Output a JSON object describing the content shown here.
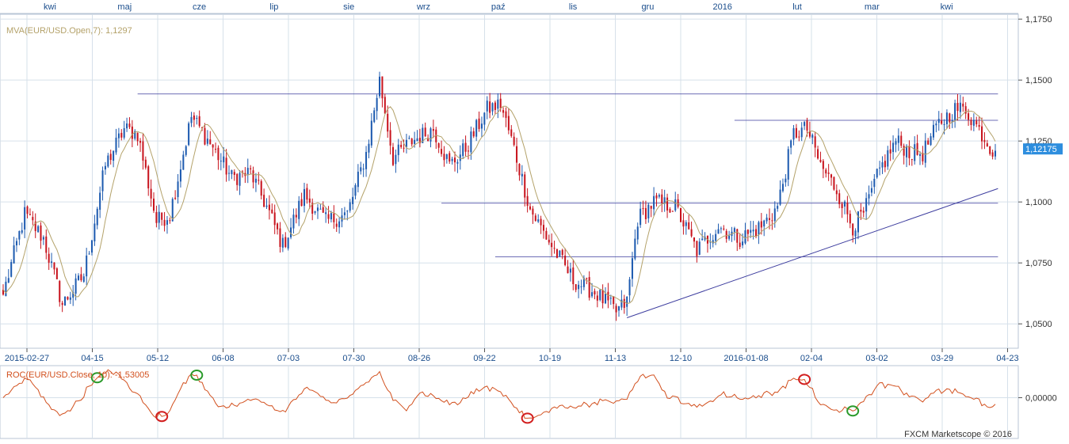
{
  "colors": {
    "up": "#1e5bb0",
    "down": "#c8141e",
    "ma": "#b4a26a",
    "roc": "#d2501e",
    "grid": "#d6e0ea",
    "frame": "#b8c6d6",
    "trendline": "#3c3c9e",
    "markerRed": "#d21e1e",
    "markerGreen": "#2a9a2a",
    "priceTag": "#2e8ede",
    "monthArrow": "#e08a00"
  },
  "chart_data": [
    {
      "type": "candlestick",
      "title": "MVA(EUR/USD.Open,7): 1,1297",
      "ma_label": "MVA(EUR/USD.Open,7): 1,1297",
      "ylim": [
        1.04,
        1.177
      ],
      "y_ticks": [
        "1,1750",
        "1,1500",
        "1,1250",
        "1,1000",
        "1,0750",
        "1,0500"
      ],
      "y_tick_values": [
        1.175,
        1.15,
        1.125,
        1.1,
        1.075,
        1.05
      ],
      "last_price": "1,12175",
      "x_labels": [
        "2015-02-27",
        "04-15",
        "05-12",
        "06-08",
        "07-03",
        "07-30",
        "08-26",
        "09-22",
        "10-19",
        "11-13",
        "12-10",
        "2016-01-08",
        "02-04",
        "03-02",
        "03-29",
        "04-23"
      ],
      "month_labels": [
        "kwi",
        "maj",
        "cze",
        "lip",
        "sie",
        "wrz",
        "paź",
        "lis",
        "gru",
        "2016",
        "lut",
        "mar",
        "kwi"
      ],
      "key_closes": [
        [
          0,
          1.062
        ],
        [
          8,
          1.095
        ],
        [
          15,
          1.085
        ],
        [
          22,
          1.058
        ],
        [
          30,
          1.07
        ],
        [
          38,
          1.115
        ],
        [
          45,
          1.13
        ],
        [
          50,
          1.128
        ],
        [
          57,
          1.092
        ],
        [
          62,
          1.095
        ],
        [
          70,
          1.135
        ],
        [
          77,
          1.124
        ],
        [
          85,
          1.11
        ],
        [
          92,
          1.112
        ],
        [
          98,
          1.098
        ],
        [
          104,
          1.082
        ],
        [
          112,
          1.103
        ],
        [
          120,
          1.092
        ],
        [
          128,
          1.095
        ],
        [
          135,
          1.12
        ],
        [
          140,
          1.15
        ],
        [
          145,
          1.118
        ],
        [
          152,
          1.125
        ],
        [
          160,
          1.13
        ],
        [
          166,
          1.115
        ],
        [
          172,
          1.122
        ],
        [
          180,
          1.138
        ],
        [
          185,
          1.14
        ],
        [
          190,
          1.122
        ],
        [
          196,
          1.097
        ],
        [
          204,
          1.082
        ],
        [
          212,
          1.068
        ],
        [
          220,
          1.063
        ],
        [
          228,
          1.055
        ],
        [
          232,
          1.059
        ],
        [
          236,
          1.093
        ],
        [
          242,
          1.1
        ],
        [
          250,
          1.098
        ],
        [
          258,
          1.08
        ],
        [
          266,
          1.09
        ],
        [
          274,
          1.085
        ],
        [
          282,
          1.09
        ],
        [
          288,
          1.098
        ],
        [
          294,
          1.128
        ],
        [
          299,
          1.13
        ],
        [
          304,
          1.115
        ],
        [
          310,
          1.105
        ],
        [
          316,
          1.09
        ],
        [
          320,
          1.095
        ],
        [
          326,
          1.113
        ],
        [
          332,
          1.125
        ],
        [
          338,
          1.12
        ],
        [
          342,
          1.12
        ],
        [
          348,
          1.132
        ],
        [
          354,
          1.138
        ],
        [
          358,
          1.138
        ],
        [
          364,
          1.128
        ],
        [
          368,
          1.121
        ]
      ],
      "horizontal_lines": [
        {
          "from": 50,
          "to": 205,
          "price": 1.1443
        },
        {
          "from": 205,
          "to": 370,
          "price": 1.1443
        },
        {
          "from": 272,
          "to": 370,
          "price": 1.1335
        },
        {
          "from": 163,
          "to": 370,
          "price": 1.0995
        },
        {
          "from": 183,
          "to": 370,
          "price": 1.0775
        }
      ],
      "trendline": {
        "from": [
          232,
          1.0525
        ],
        "to": [
          370,
          1.1055
        ]
      }
    },
    {
      "type": "line",
      "title": "ROC(EUR/USD.Close, 10): -1,53005",
      "roc_label": "ROC(EUR/USD.Close, 10): -1,53005",
      "y_ticks": [
        "0,00000"
      ],
      "y_tick_values": [
        0
      ],
      "ylim": [
        -7,
        5.5
      ],
      "markers": [
        {
          "index": 35,
          "color": "green"
        },
        {
          "index": 59,
          "color": "red"
        },
        {
          "index": 72,
          "color": "green"
        },
        {
          "index": 195,
          "color": "red"
        },
        {
          "index": 298,
          "color": "red"
        },
        {
          "index": 316,
          "color": "green"
        }
      ]
    }
  ],
  "footer": {
    "credit": "FXCM Marketscope © 2016"
  }
}
